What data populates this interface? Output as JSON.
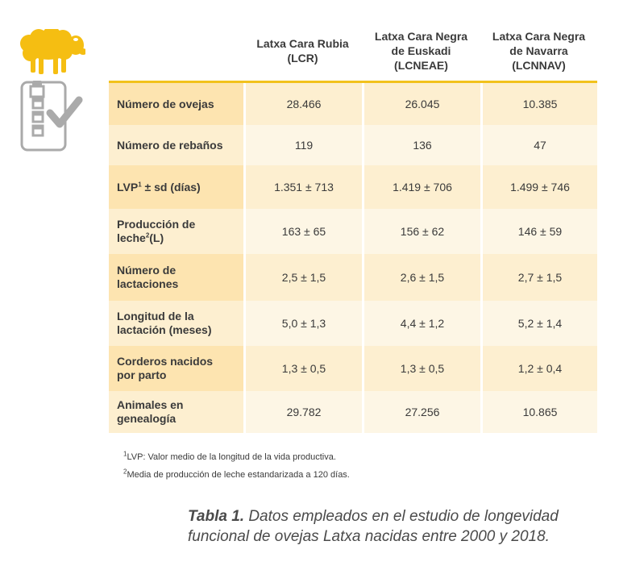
{
  "colors": {
    "accent": "#f2c21c",
    "row_dark": "#fdefd0",
    "row_light": "#fdf6e5",
    "icon_gray": "#aaaaaa",
    "sheep_yellow": "#f5be12"
  },
  "icons": [
    "sheep-icon",
    "checklist-icon"
  ],
  "table": {
    "headers": [
      {
        "lines": []
      },
      {
        "lines": [
          "Latxa Cara Rubia",
          "(LCR)"
        ]
      },
      {
        "lines": [
          "Latxa Cara Negra",
          "de Euskadi",
          "(LCNEAE)"
        ]
      },
      {
        "lines": [
          "Latxa Cara Negra",
          "de Navarra",
          "(LCNNAV)"
        ]
      }
    ],
    "rows": [
      {
        "label": [
          {
            "text": "Número de ovejas"
          }
        ],
        "values": [
          "28.466",
          "26.045",
          "10.385"
        ]
      },
      {
        "label": [
          {
            "text": "Número de rebaños"
          }
        ],
        "values": [
          "119",
          "136",
          "47"
        ]
      },
      {
        "label": [
          {
            "text": "LVP",
            "sup": "1",
            "after": " ± sd (días)"
          }
        ],
        "values": [
          "1.351 ± 713",
          "1.419 ± 706",
          "1.499 ± 746"
        ]
      },
      {
        "label": [
          {
            "text": "Producción de"
          },
          {
            "text": "leche",
            "sup": "2",
            "after": "(L)"
          }
        ],
        "values": [
          "163 ± 65",
          "156 ± 62",
          "146 ± 59"
        ]
      },
      {
        "label": [
          {
            "text": "Número de"
          },
          {
            "text": "lactaciones"
          }
        ],
        "values": [
          "2,5 ± 1,5",
          "2,6 ± 1,5",
          "2,7 ± 1,5"
        ]
      },
      {
        "label": [
          {
            "text": "Longitud de la"
          },
          {
            "text": "lactación (meses)"
          }
        ],
        "values": [
          "5,0 ± 1,3",
          "4,4 ± 1,2",
          "5,2 ± 1,4"
        ]
      },
      {
        "label": [
          {
            "text": "Corderos nacidos"
          },
          {
            "text": "por parto"
          }
        ],
        "values": [
          "1,3 ± 0,5",
          "1,3 ± 0,5",
          "1,2 ± 0,4"
        ]
      },
      {
        "label": [
          {
            "text": "Animales en"
          },
          {
            "text": "genealogía"
          }
        ],
        "values": [
          "29.782",
          "27.256",
          "10.865"
        ]
      }
    ]
  },
  "notes": [
    {
      "sup": "1",
      "text": "LVP: Valor medio de la longitud de la vida productiva."
    },
    {
      "sup": "2",
      "text": "Media de producción de leche estandarizada a 120 días."
    }
  ],
  "caption": {
    "bold": "Tabla 1.",
    "line1": " Datos empleados en el estudio de longevidad",
    "line2": "funcional de ovejas Latxa nacidas entre 2000 y 2018."
  }
}
